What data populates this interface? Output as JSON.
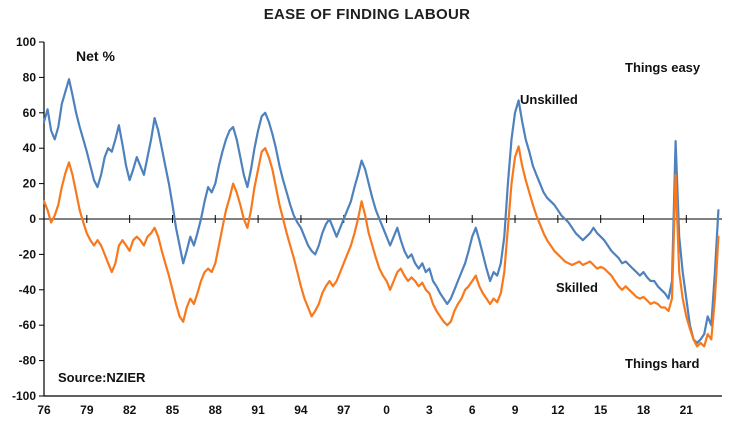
{
  "chart_data": {
    "type": "line",
    "title": "EASE OF FINDING LABOUR",
    "y_axis": {
      "label": "Net %",
      "min": -100,
      "max": 100,
      "ticks": [
        100,
        80,
        60,
        40,
        20,
        0,
        -20,
        -40,
        -60,
        -80,
        -100
      ]
    },
    "x_axis": {
      "min": 1976,
      "max": 2023.5,
      "ticks": [
        {
          "label": "76",
          "year": 1976
        },
        {
          "label": "79",
          "year": 1979
        },
        {
          "label": "82",
          "year": 1982
        },
        {
          "label": "85",
          "year": 1985
        },
        {
          "label": "88",
          "year": 1988
        },
        {
          "label": "91",
          "year": 1991
        },
        {
          "label": "94",
          "year": 1994
        },
        {
          "label": "97",
          "year": 1997
        },
        {
          "label": "0",
          "year": 2000
        },
        {
          "label": "3",
          "year": 2003
        },
        {
          "label": "6",
          "year": 2006
        },
        {
          "label": "9",
          "year": 2009
        },
        {
          "label": "12",
          "year": 2012
        },
        {
          "label": "15",
          "year": 2015
        },
        {
          "label": "18",
          "year": 2018
        },
        {
          "label": "21",
          "year": 2021
        }
      ]
    },
    "x_start": 1976,
    "x_step": 0.25,
    "grid": false,
    "legend_position": "none",
    "annotations": {
      "net_pct": "Net %",
      "things_easy": "Things easy",
      "things_hard": "Things hard",
      "unskilled_label": "Unskilled",
      "skilled_label": "Skilled",
      "source": "Source:NZIER"
    },
    "series": [
      {
        "name": "Unskilled",
        "color": "#4F81BD",
        "values": [
          55,
          62,
          50,
          45,
          52,
          65,
          72,
          79,
          70,
          60,
          52,
          45,
          38,
          30,
          22,
          18,
          25,
          35,
          40,
          38,
          45,
          53,
          42,
          30,
          22,
          28,
          35,
          30,
          25,
          35,
          45,
          57,
          50,
          40,
          30,
          20,
          8,
          -5,
          -15,
          -25,
          -18,
          -10,
          -15,
          -8,
          0,
          10,
          18,
          15,
          20,
          30,
          38,
          45,
          50,
          52,
          45,
          35,
          25,
          18,
          28,
          40,
          50,
          58,
          60,
          55,
          48,
          40,
          30,
          22,
          15,
          8,
          2,
          -2,
          -5,
          -10,
          -15,
          -18,
          -20,
          -15,
          -8,
          -3,
          0,
          -5,
          -10,
          -5,
          0,
          5,
          10,
          18,
          25,
          33,
          28,
          20,
          12,
          5,
          0,
          -5,
          -10,
          -15,
          -10,
          -5,
          -12,
          -18,
          -22,
          -20,
          -25,
          -28,
          -25,
          -30,
          -28,
          -35,
          -38,
          -42,
          -45,
          -48,
          -45,
          -40,
          -35,
          -30,
          -25,
          -18,
          -10,
          -5,
          -12,
          -20,
          -28,
          -35,
          -30,
          -32,
          -25,
          -10,
          20,
          45,
          60,
          67,
          55,
          45,
          38,
          30,
          25,
          20,
          15,
          12,
          10,
          8,
          5,
          2,
          0,
          -2,
          -5,
          -8,
          -10,
          -12,
          -10,
          -8,
          -5,
          -8,
          -10,
          -12,
          -15,
          -18,
          -20,
          -22,
          -25,
          -24,
          -26,
          -28,
          -30,
          -32,
          -30,
          -33,
          -35,
          -35,
          -38,
          -40,
          -42,
          -45,
          -35,
          44,
          -10,
          -30,
          -45,
          -60,
          -68,
          -70,
          -68,
          -65,
          -55,
          -60,
          -30,
          5
        ]
      },
      {
        "name": "Skilled",
        "color": "#F8791D",
        "values": [
          10,
          5,
          -2,
          2,
          8,
          18,
          26,
          32,
          25,
          15,
          5,
          -2,
          -8,
          -12,
          -15,
          -12,
          -15,
          -20,
          -25,
          -30,
          -25,
          -15,
          -12,
          -15,
          -18,
          -12,
          -10,
          -12,
          -15,
          -10,
          -8,
          -5,
          -10,
          -18,
          -25,
          -32,
          -40,
          -48,
          -55,
          -58,
          -50,
          -45,
          -48,
          -42,
          -35,
          -30,
          -28,
          -30,
          -25,
          -15,
          -5,
          5,
          12,
          20,
          15,
          8,
          0,
          -5,
          5,
          18,
          28,
          38,
          40,
          35,
          28,
          18,
          8,
          0,
          -8,
          -15,
          -22,
          -30,
          -38,
          -45,
          -50,
          -55,
          -52,
          -48,
          -42,
          -38,
          -35,
          -38,
          -35,
          -30,
          -25,
          -20,
          -15,
          -8,
          0,
          10,
          2,
          -8,
          -15,
          -22,
          -28,
          -32,
          -35,
          -40,
          -35,
          -30,
          -28,
          -32,
          -35,
          -33,
          -35,
          -38,
          -36,
          -40,
          -42,
          -48,
          -52,
          -55,
          -58,
          -60,
          -58,
          -52,
          -48,
          -45,
          -40,
          -38,
          -35,
          -32,
          -38,
          -42,
          -45,
          -48,
          -45,
          -47,
          -42,
          -30,
          -5,
          20,
          35,
          41,
          30,
          22,
          15,
          8,
          2,
          -3,
          -8,
          -12,
          -15,
          -18,
          -20,
          -22,
          -24,
          -25,
          -26,
          -25,
          -24,
          -26,
          -25,
          -24,
          -26,
          -28,
          -27,
          -28,
          -30,
          -32,
          -35,
          -38,
          -40,
          -38,
          -40,
          -42,
          -44,
          -45,
          -44,
          -46,
          -48,
          -47,
          -48,
          -50,
          -50,
          -52,
          -45,
          25,
          -30,
          -45,
          -55,
          -62,
          -68,
          -72,
          -70,
          -72,
          -65,
          -68,
          -45,
          -10
        ]
      }
    ]
  }
}
